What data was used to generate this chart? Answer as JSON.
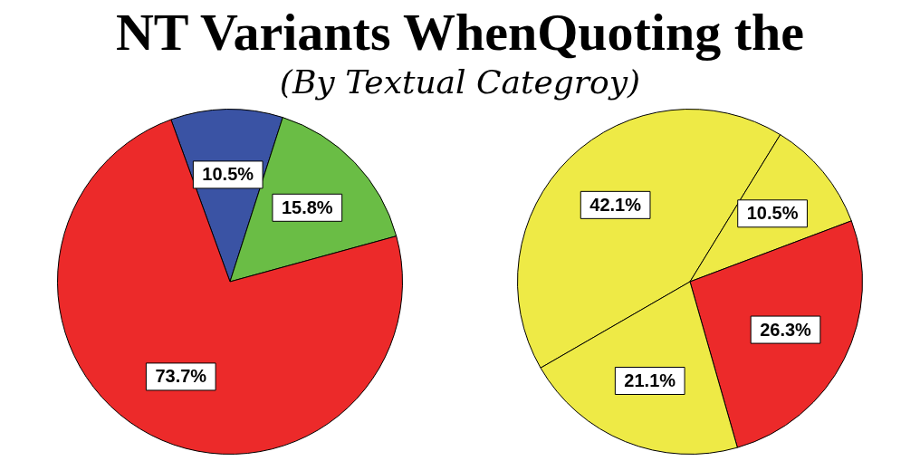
{
  "chart_data": [
    {
      "type": "pie",
      "title": "NT Variants WhenQuoting the",
      "subtitle": "(By Textual Categroy)",
      "categories": [
        null,
        null,
        null
      ],
      "values": [
        10.5,
        15.8,
        73.7
      ],
      "colors": [
        "#3a53a4",
        "#6abd45",
        "#ec2a2a"
      ],
      "value_labels": [
        "10.5%",
        "15.8%",
        "73.7%"
      ],
      "legend": false
    },
    {
      "type": "pie",
      "categories": [
        null,
        null,
        null,
        null
      ],
      "values": [
        42.1,
        10.5,
        26.3,
        21.1
      ],
      "colors": [
        "#eeea46",
        "#eeea46",
        "#ec2a2a",
        "#eeea46"
      ],
      "value_labels": [
        "42.1%",
        "10.5%",
        "26.3%",
        "21.1%"
      ],
      "legend": false
    }
  ]
}
